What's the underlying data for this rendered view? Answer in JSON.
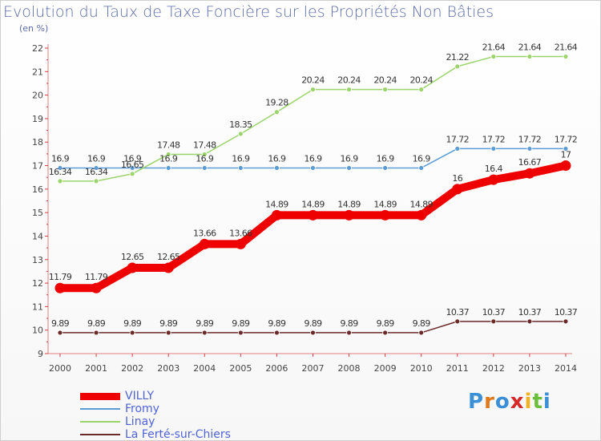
{
  "header": {
    "title": "Evolution du Taux de Taxe Foncière sur les Propriétés Non Bâties",
    "unit": "(en %)"
  },
  "logo": {
    "text": "Proxiti",
    "colors": [
      "#3b8fd6",
      "#e07a1a",
      "#3b8fd6",
      "#d62a2a",
      "#f2b21b",
      "#6bbf3a",
      "#3b8fd6"
    ]
  },
  "chart_data": {
    "type": "line",
    "x": [
      "2000",
      "2001",
      "2002",
      "2003",
      "2004",
      "2005",
      "2006",
      "2007",
      "2008",
      "2009",
      "2010",
      "2011",
      "2012",
      "2013",
      "2014"
    ],
    "ylim": [
      9,
      22
    ],
    "yticks": [
      "9",
      "10",
      "11",
      "12",
      "13",
      "14",
      "15",
      "16",
      "17",
      "18",
      "19",
      "20",
      "21",
      "22"
    ],
    "grid": false,
    "legend_position": "bottom-left",
    "series": [
      {
        "name": "VILLY",
        "color": "#ee0000",
        "emphasis": true,
        "values": [
          11.79,
          11.79,
          12.65,
          12.65,
          13.66,
          13.66,
          14.89,
          14.89,
          14.89,
          14.89,
          14.89,
          16,
          16.4,
          16.67,
          17
        ],
        "labels": [
          "11.79",
          "11.79",
          "12.65",
          "12.65",
          "13.66",
          "13.66",
          "14.89",
          "14.89",
          "14.89",
          "14.89",
          "14.89",
          "16",
          "16.4",
          "16.67",
          "17"
        ]
      },
      {
        "name": "Fromy",
        "color": "#5b9bd5",
        "emphasis": false,
        "values": [
          16.9,
          16.9,
          16.9,
          16.9,
          16.9,
          16.9,
          16.9,
          16.9,
          16.9,
          16.9,
          16.9,
          17.72,
          17.72,
          17.72,
          17.72
        ],
        "labels": [
          "16.9",
          "16.9",
          "16.9",
          "16.9",
          "16.9",
          "16.9",
          "16.9",
          "16.9",
          "16.9",
          "16.9",
          "16.9",
          "17.72",
          "17.72",
          "17.72",
          "17.72"
        ]
      },
      {
        "name": "Linay",
        "color": "#9ad46a",
        "emphasis": false,
        "values": [
          16.34,
          16.34,
          16.65,
          17.48,
          17.48,
          18.35,
          19.28,
          20.24,
          20.24,
          20.24,
          20.24,
          21.22,
          21.64,
          21.64,
          21.64
        ],
        "labels": [
          "16.34",
          "16.34",
          "16.65",
          "17.48",
          "17.48",
          "18.35",
          "19.28",
          "20.24",
          "20.24",
          "20.24",
          "20.24",
          "21.22",
          "21.64",
          "21.64",
          "21.64"
        ]
      },
      {
        "name": "La Ferté-sur-Chiers",
        "color": "#6b2a2a",
        "emphasis": false,
        "values": [
          9.89,
          9.89,
          9.89,
          9.89,
          9.89,
          9.89,
          9.89,
          9.89,
          9.89,
          9.89,
          9.89,
          10.37,
          10.37,
          10.37,
          10.37
        ],
        "labels": [
          "9.89",
          "9.89",
          "9.89",
          "9.89",
          "9.89",
          "9.89",
          "9.89",
          "9.89",
          "9.89",
          "9.89",
          "9.89",
          "10.37",
          "10.37",
          "10.37",
          "10.37"
        ]
      }
    ]
  }
}
